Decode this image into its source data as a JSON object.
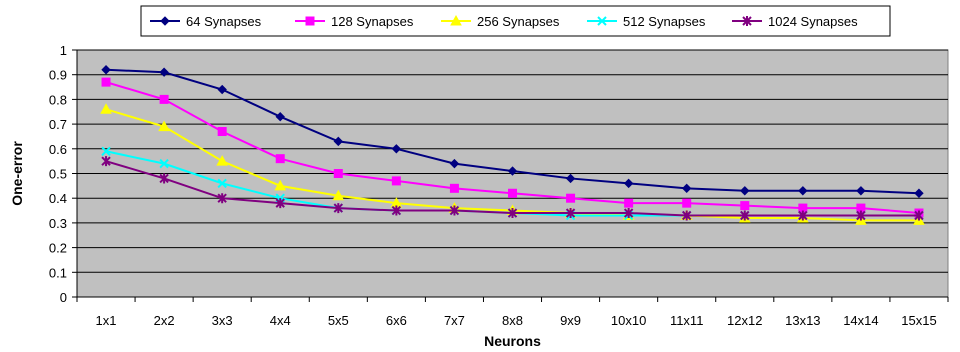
{
  "chart_data": {
    "type": "line",
    "title": "",
    "xlabel": "Neurons",
    "ylabel": "One-error",
    "ylim": [
      0,
      1
    ],
    "yticks": [
      0,
      0.1,
      0.2,
      0.3,
      0.4,
      0.5,
      0.6,
      0.7,
      0.8,
      0.9,
      1
    ],
    "grid": true,
    "legend_position": "top",
    "plot_background": "#c0c0c0",
    "categories": [
      "1x1",
      "2x2",
      "3x3",
      "4x4",
      "5x5",
      "6x6",
      "7x7",
      "8x8",
      "9x9",
      "10x10",
      "11x11",
      "12x12",
      "13x13",
      "14x14",
      "15x15"
    ],
    "series": [
      {
        "name": "64 Synapses",
        "color": "#000080",
        "marker": "diamond",
        "values": [
          0.92,
          0.91,
          0.84,
          0.73,
          0.63,
          0.6,
          0.54,
          0.51,
          0.48,
          0.46,
          0.44,
          0.43,
          0.43,
          0.43,
          0.42
        ]
      },
      {
        "name": "128 Synapses",
        "color": "#ff00ff",
        "marker": "square",
        "values": [
          0.87,
          0.8,
          0.67,
          0.56,
          0.5,
          0.47,
          0.44,
          0.42,
          0.4,
          0.38,
          0.38,
          0.37,
          0.36,
          0.36,
          0.34
        ]
      },
      {
        "name": "256 Synapses",
        "color": "#ffff00",
        "marker": "triangle",
        "values": [
          0.76,
          0.69,
          0.55,
          0.45,
          0.41,
          0.38,
          0.36,
          0.35,
          0.34,
          0.33,
          0.33,
          0.32,
          0.32,
          0.31,
          0.31
        ]
      },
      {
        "name": "512 Synapses",
        "color": "#00ffff",
        "marker": "x",
        "values": [
          0.59,
          0.54,
          0.46,
          0.4,
          0.36,
          0.35,
          0.35,
          0.34,
          0.33,
          0.33,
          0.33,
          0.33,
          0.33,
          0.33,
          0.33
        ]
      },
      {
        "name": "1024 Synapses",
        "color": "#800080",
        "marker": "star",
        "values": [
          0.55,
          0.48,
          0.4,
          0.38,
          0.36,
          0.35,
          0.35,
          0.34,
          0.34,
          0.34,
          0.33,
          0.33,
          0.33,
          0.33,
          0.33
        ]
      }
    ]
  }
}
